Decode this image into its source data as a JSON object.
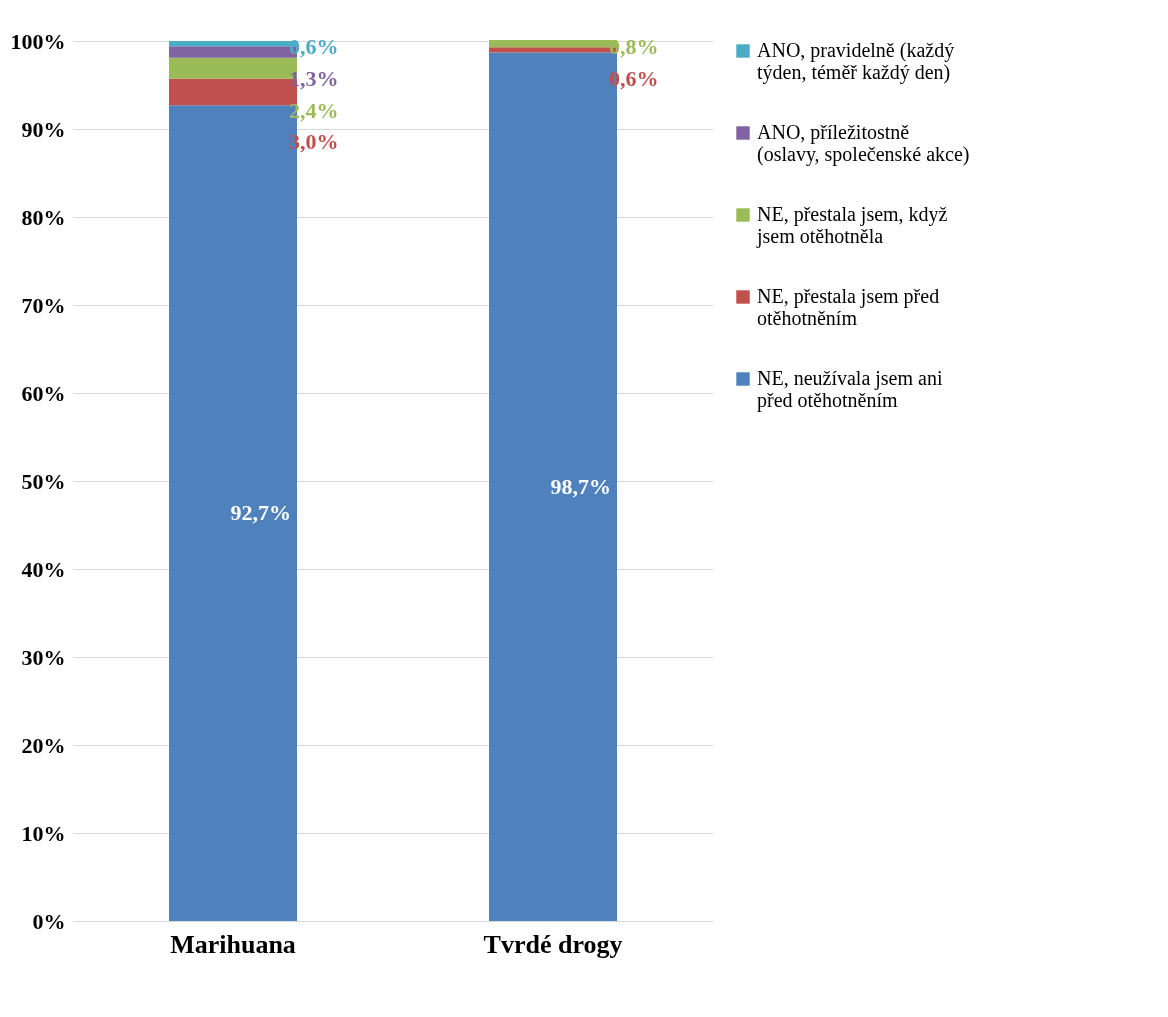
{
  "chart_data": {
    "type": "bar",
    "stacked": true,
    "categories": [
      "Marihuana",
      "Tvrdé drogy"
    ],
    "series": [
      {
        "name": "NE, neužívala jsem ani před otěhotněním",
        "color": "#4f81bd",
        "values": [
          92.7,
          98.7
        ],
        "value_labels": [
          "92,7%",
          "98,7%"
        ]
      },
      {
        "name": "NE, přestala jsem před otěhotněním",
        "color": "#c0504d",
        "values": [
          3.0,
          0.6
        ],
        "value_labels": [
          "3,0%",
          "0,6%"
        ]
      },
      {
        "name": "NE, přestala jsem, když jsem otěhotněla",
        "color": "#9bbb59",
        "values": [
          2.4,
          0.8
        ],
        "value_labels": [
          "2,4%",
          "0,8%"
        ]
      },
      {
        "name": "ANO, příležitostně (oslavy, společenské akce)",
        "color": "#8064a2",
        "values": [
          1.3,
          null
        ],
        "value_labels": [
          "1,3%",
          null
        ]
      },
      {
        "name": "ANO, pravidelně (každý týden, téměř každý den)",
        "color": "#4bacc6",
        "values": [
          0.6,
          null
        ],
        "value_labels": [
          "0,6%",
          null
        ]
      }
    ],
    "ylim": [
      0,
      100
    ],
    "yticks": [
      {
        "value": 0,
        "label": "0%"
      },
      {
        "value": 10,
        "label": "10%"
      },
      {
        "value": 20,
        "label": "20%"
      },
      {
        "value": 30,
        "label": "30%"
      },
      {
        "value": 40,
        "label": "40%"
      },
      {
        "value": 50,
        "label": "50%"
      },
      {
        "value": 60,
        "label": "60%"
      },
      {
        "value": 70,
        "label": "70%"
      },
      {
        "value": 80,
        "label": "80%"
      },
      {
        "value": 90,
        "label": "90%"
      },
      {
        "value": 100,
        "label": "100%"
      }
    ],
    "grid": "y",
    "legend": "right"
  }
}
